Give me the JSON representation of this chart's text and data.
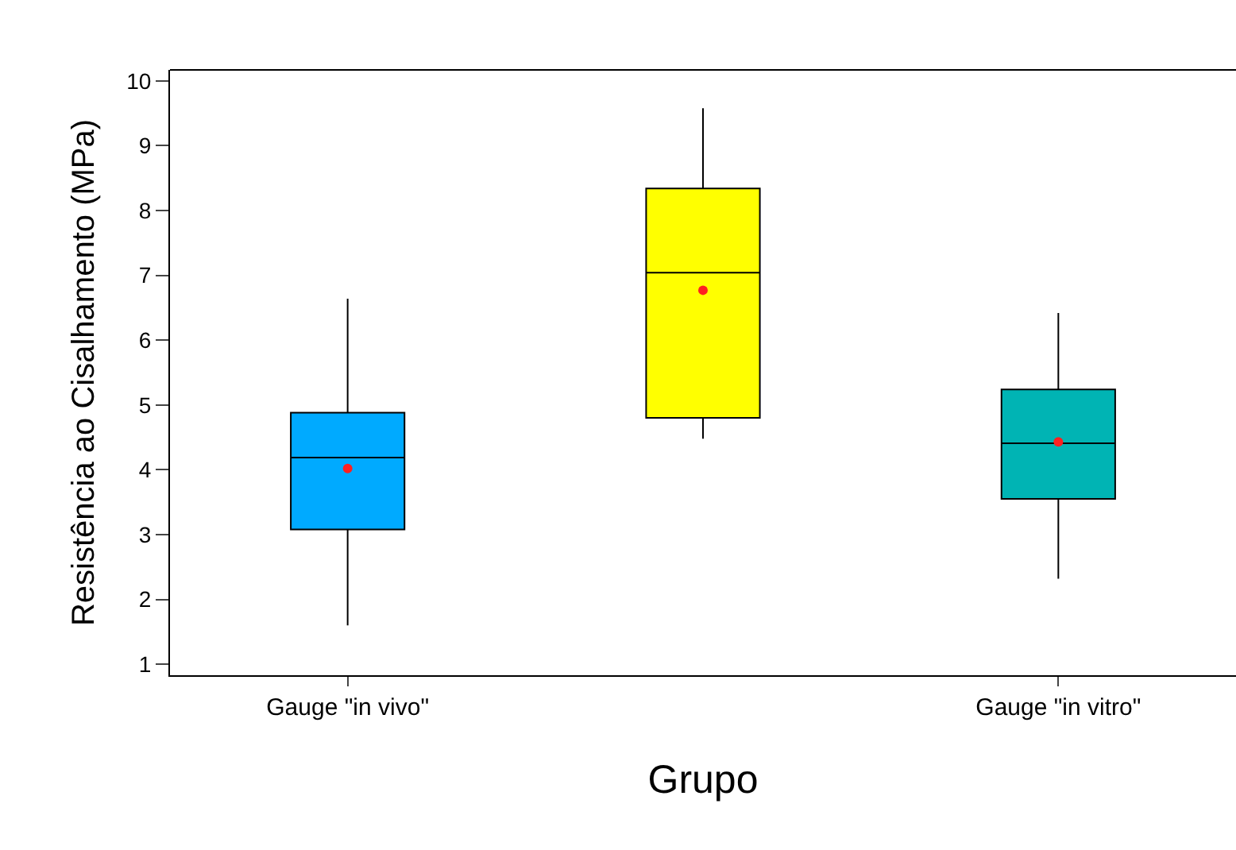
{
  "chart_data": {
    "type": "box",
    "xlabel": "Grupo",
    "ylabel": "Resistência ao Cisalhamento (MPa)",
    "categories": [
      "Gauge \"in vivo\"",
      null,
      "Gauge \"in vitro\""
    ],
    "colors": [
      "#00aaff",
      "#ffff00",
      "#00b4b4"
    ],
    "boxes": [
      {
        "low": 1.6,
        "q1": 3.08,
        "median": 4.19,
        "q3": 4.88,
        "high": 6.64,
        "mean": 4.02
      },
      {
        "low": 4.48,
        "q1": 4.8,
        "median": 7.04,
        "q3": 8.34,
        "high": 9.58,
        "mean": 6.77
      },
      {
        "low": 2.32,
        "q1": 3.55,
        "median": 4.41,
        "q3": 5.24,
        "high": 6.42,
        "mean": 4.43
      }
    ],
    "ylim": [
      0.83,
      10.17
    ],
    "yticks": [
      1,
      2,
      3,
      4,
      5,
      6,
      7,
      8,
      9,
      10
    ],
    "grid": false
  }
}
